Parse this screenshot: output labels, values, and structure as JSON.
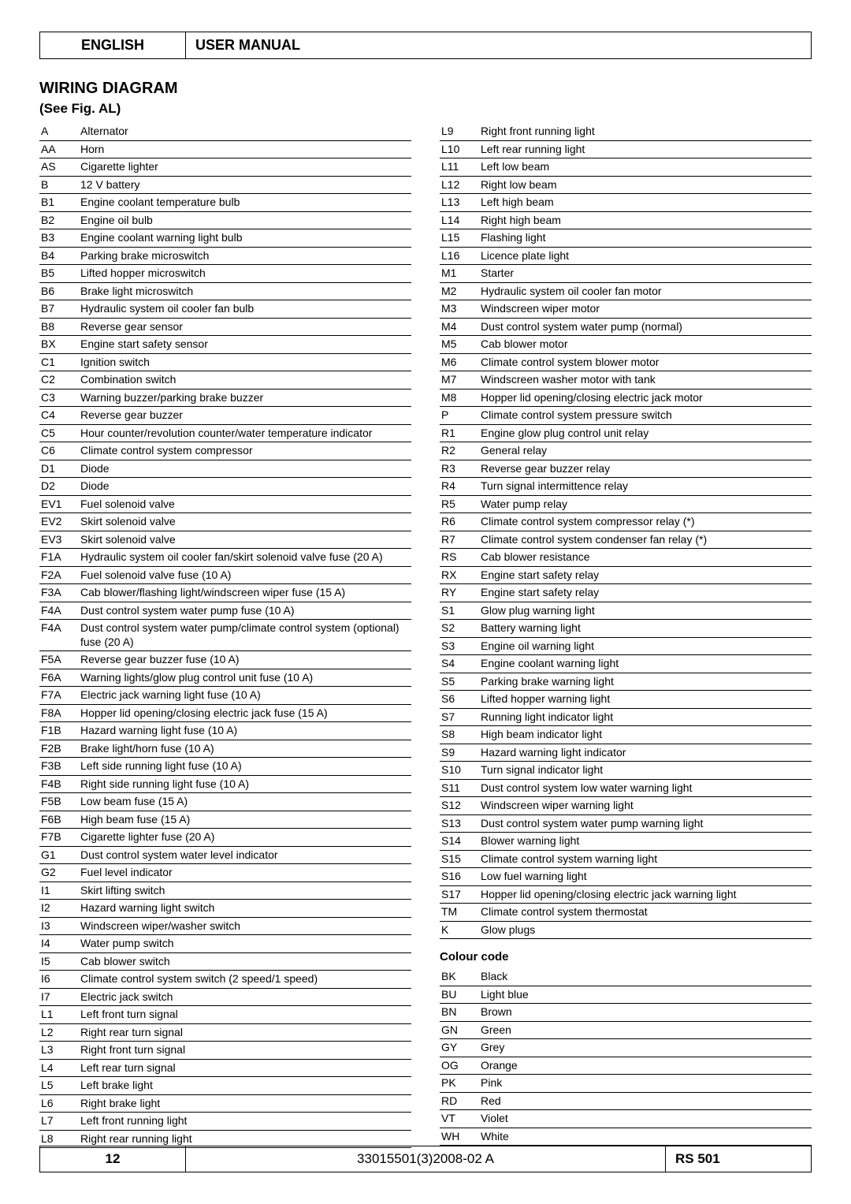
{
  "header": {
    "language": "ENGLISH",
    "manual": "USER MANUAL"
  },
  "section": {
    "title": "WIRING DIAGRAM",
    "subtitle": "(See Fig. AL)"
  },
  "left_entries": [
    {
      "c": "A",
      "d": "Alternator"
    },
    {
      "c": "AA",
      "d": "Horn"
    },
    {
      "c": "AS",
      "d": "Cigarette lighter"
    },
    {
      "c": "B",
      "d": "12 V battery"
    },
    {
      "c": "B1",
      "d": "Engine coolant temperature bulb"
    },
    {
      "c": "B2",
      "d": "Engine oil bulb"
    },
    {
      "c": "B3",
      "d": "Engine coolant warning light bulb"
    },
    {
      "c": "B4",
      "d": "Parking brake microswitch"
    },
    {
      "c": "B5",
      "d": "Lifted hopper microswitch"
    },
    {
      "c": "B6",
      "d": "Brake light microswitch"
    },
    {
      "c": "B7",
      "d": "Hydraulic system oil cooler fan bulb"
    },
    {
      "c": "B8",
      "d": "Reverse gear sensor"
    },
    {
      "c": "BX",
      "d": "Engine start safety sensor"
    },
    {
      "c": "C1",
      "d": "Ignition switch"
    },
    {
      "c": "C2",
      "d": "Combination switch"
    },
    {
      "c": "C3",
      "d": "Warning buzzer/parking brake buzzer"
    },
    {
      "c": "C4",
      "d": "Reverse gear buzzer"
    },
    {
      "c": "C5",
      "d": "Hour counter/revolution counter/water temperature indicator"
    },
    {
      "c": "C6",
      "d": "Climate control system compressor"
    },
    {
      "c": "D1",
      "d": "Diode"
    },
    {
      "c": "D2",
      "d": "Diode"
    },
    {
      "c": "EV1",
      "d": "Fuel solenoid valve"
    },
    {
      "c": "EV2",
      "d": "Skirt solenoid valve"
    },
    {
      "c": "EV3",
      "d": "Skirt solenoid valve"
    },
    {
      "c": "F1A",
      "d": "Hydraulic system oil cooler fan/skirt solenoid valve fuse (20 A)"
    },
    {
      "c": "F2A",
      "d": "Fuel solenoid valve fuse (10 A)"
    },
    {
      "c": "F3A",
      "d": "Cab blower/flashing light/windscreen wiper fuse (15 A)"
    },
    {
      "c": "F4A",
      "d": "Dust control system water pump fuse (10 A)"
    },
    {
      "c": "F4A",
      "d": "Dust control system water pump/climate control system (optional) fuse (20 A)"
    },
    {
      "c": "F5A",
      "d": "Reverse gear buzzer fuse (10 A)"
    },
    {
      "c": "F6A",
      "d": "Warning lights/glow plug control unit fuse (10 A)"
    },
    {
      "c": "F7A",
      "d": "Electric jack warning light fuse (10 A)"
    },
    {
      "c": "F8A",
      "d": "Hopper lid opening/closing electric jack fuse (15 A)"
    },
    {
      "c": "F1B",
      "d": "Hazard warning light fuse (10 A)"
    },
    {
      "c": "F2B",
      "d": "Brake light/horn fuse (10 A)"
    },
    {
      "c": "F3B",
      "d": "Left side running light fuse (10 A)"
    },
    {
      "c": "F4B",
      "d": "Right side running light fuse (10 A)"
    },
    {
      "c": "F5B",
      "d": "Low beam fuse (15 A)"
    },
    {
      "c": "F6B",
      "d": "High beam fuse (15 A)"
    },
    {
      "c": "F7B",
      "d": "Cigarette lighter fuse (20 A)"
    },
    {
      "c": "G1",
      "d": "Dust control system water level indicator"
    },
    {
      "c": "G2",
      "d": "Fuel level indicator"
    },
    {
      "c": "I1",
      "d": "Skirt lifting switch"
    },
    {
      "c": "I2",
      "d": "Hazard warning light switch"
    },
    {
      "c": "I3",
      "d": "Windscreen wiper/washer switch"
    },
    {
      "c": "I4",
      "d": "Water pump switch"
    },
    {
      "c": "I5",
      "d": "Cab blower switch"
    },
    {
      "c": "I6",
      "d": "Climate control system switch (2 speed/1 speed)"
    },
    {
      "c": "I7",
      "d": "Electric jack switch"
    },
    {
      "c": "L1",
      "d": "Left front turn signal"
    },
    {
      "c": "L2",
      "d": "Right rear turn signal"
    },
    {
      "c": "L3",
      "d": "Right front turn signal"
    },
    {
      "c": "L4",
      "d": "Left rear turn signal"
    },
    {
      "c": "L5",
      "d": "Left brake light"
    },
    {
      "c": "L6",
      "d": "Right brake light"
    },
    {
      "c": "L7",
      "d": "Left front running light"
    },
    {
      "c": "L8",
      "d": "Right rear running light"
    }
  ],
  "right_entries": [
    {
      "c": "L9",
      "d": "Right front running light"
    },
    {
      "c": "L10",
      "d": "Left rear running light"
    },
    {
      "c": "L11",
      "d": "Left low beam"
    },
    {
      "c": "L12",
      "d": "Right low beam"
    },
    {
      "c": "L13",
      "d": "Left high beam"
    },
    {
      "c": "L14",
      "d": "Right high beam"
    },
    {
      "c": "L15",
      "d": "Flashing light"
    },
    {
      "c": "L16",
      "d": "Licence plate light"
    },
    {
      "c": "M1",
      "d": "Starter"
    },
    {
      "c": "M2",
      "d": "Hydraulic system oil cooler fan motor"
    },
    {
      "c": "M3",
      "d": "Windscreen wiper motor"
    },
    {
      "c": "M4",
      "d": "Dust control system water pump (normal)"
    },
    {
      "c": "M5",
      "d": "Cab blower motor"
    },
    {
      "c": "M6",
      "d": "Climate control system blower motor"
    },
    {
      "c": "M7",
      "d": "Windscreen washer motor with tank"
    },
    {
      "c": "M8",
      "d": "Hopper lid opening/closing electric jack motor"
    },
    {
      "c": "P",
      "d": "Climate control system pressure switch"
    },
    {
      "c": "R1",
      "d": "Engine glow plug control unit relay"
    },
    {
      "c": "R2",
      "d": "General relay"
    },
    {
      "c": "R3",
      "d": "Reverse gear buzzer relay"
    },
    {
      "c": "R4",
      "d": "Turn signal intermittence relay"
    },
    {
      "c": "R5",
      "d": "Water pump relay"
    },
    {
      "c": "R6",
      "d": "Climate control system compressor relay (*)"
    },
    {
      "c": "R7",
      "d": "Climate control system condenser fan relay (*)"
    },
    {
      "c": "RS",
      "d": "Cab blower resistance"
    },
    {
      "c": "RX",
      "d": "Engine start safety relay"
    },
    {
      "c": "RY",
      "d": "Engine start safety relay"
    },
    {
      "c": "S1",
      "d": "Glow plug warning light"
    },
    {
      "c": "S2",
      "d": "Battery warning light"
    },
    {
      "c": "S3",
      "d": "Engine oil warning light"
    },
    {
      "c": "S4",
      "d": "Engine coolant warning light"
    },
    {
      "c": "S5",
      "d": "Parking brake warning light"
    },
    {
      "c": "S6",
      "d": "Lifted hopper warning light"
    },
    {
      "c": "S7",
      "d": "Running light indicator light"
    },
    {
      "c": "S8",
      "d": "High beam indicator light"
    },
    {
      "c": "S9",
      "d": "Hazard warning light indicator"
    },
    {
      "c": "S10",
      "d": "Turn signal indicator light"
    },
    {
      "c": "S11",
      "d": "Dust control system low water warning light"
    },
    {
      "c": "S12",
      "d": "Windscreen wiper warning light"
    },
    {
      "c": "S13",
      "d": "Dust control system water pump warning light"
    },
    {
      "c": "S14",
      "d": "Blower warning light"
    },
    {
      "c": "S15",
      "d": "Climate control system warning light"
    },
    {
      "c": "S16",
      "d": "Low fuel warning light"
    },
    {
      "c": "S17",
      "d": "Hopper lid opening/closing electric jack warning light"
    },
    {
      "c": "TM",
      "d": "Climate control system thermostat"
    },
    {
      "c": "K",
      "d": "Glow plugs"
    }
  ],
  "colour": {
    "title": "Colour code",
    "entries": [
      {
        "c": "BK",
        "d": "Black"
      },
      {
        "c": "BU",
        "d": "Light blue"
      },
      {
        "c": "BN",
        "d": "Brown"
      },
      {
        "c": "GN",
        "d": "Green"
      },
      {
        "c": "GY",
        "d": "Grey"
      },
      {
        "c": "OG",
        "d": "Orange"
      },
      {
        "c": "PK",
        "d": "Pink"
      },
      {
        "c": "RD",
        "d": "Red"
      },
      {
        "c": "VT",
        "d": "Violet"
      },
      {
        "c": "WH",
        "d": "White"
      }
    ]
  },
  "footer": {
    "page": "12",
    "doc": "33015501(3)2008-02 A",
    "model": "RS 501"
  }
}
